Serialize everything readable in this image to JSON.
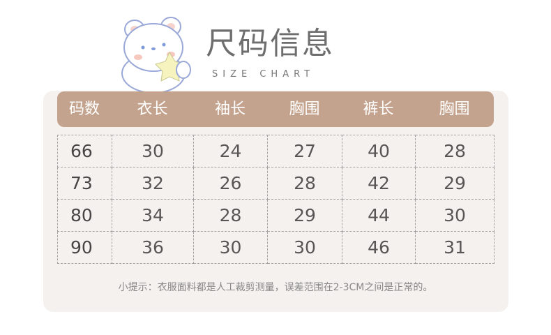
{
  "title": "尺码信息",
  "subtitle": "SIZE CHART",
  "colors": {
    "header_bg": "#c4a38e",
    "panel_bg": "#f5f1ef",
    "text": "#5a5555"
  },
  "mascot_icon": "bear-holding-star-icon",
  "table": {
    "headers": [
      "码数",
      "衣长",
      "袖长",
      "胸围",
      "裤长",
      "胸围"
    ],
    "rows": [
      [
        "66",
        "30",
        "24",
        "27",
        "40",
        "28"
      ],
      [
        "73",
        "32",
        "26",
        "28",
        "42",
        "29"
      ],
      [
        "80",
        "34",
        "28",
        "29",
        "44",
        "30"
      ],
      [
        "90",
        "36",
        "30",
        "30",
        "46",
        "31"
      ]
    ]
  },
  "note": "小提示：衣服面料都是人工裁剪测量，误差范围在2-3CM之间是正常的。"
}
